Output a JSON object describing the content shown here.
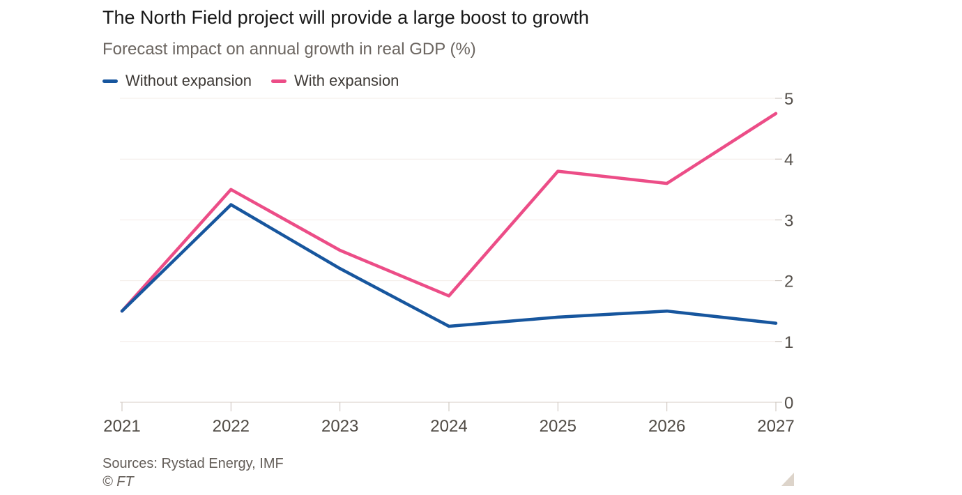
{
  "chart_data": {
    "type": "line",
    "title": "The North Field project will provide a large boost to growth",
    "subtitle": "Forecast impact on annual growth in real GDP (%)",
    "categories": [
      "2021",
      "2022",
      "2023",
      "2024",
      "2025",
      "2026",
      "2027"
    ],
    "series": [
      {
        "name": "Without expansion",
        "color": "#17569e",
        "values": [
          1.5,
          3.25,
          2.2,
          1.25,
          1.4,
          1.5,
          1.3
        ]
      },
      {
        "name": "With expansion",
        "color": "#ec4d87",
        "values": [
          1.5,
          3.5,
          2.5,
          1.75,
          3.8,
          3.6,
          4.75
        ]
      }
    ],
    "ylim": [
      0,
      5
    ],
    "yticks": [
      0,
      1,
      2,
      3,
      4,
      5
    ],
    "ylabel_side": "right",
    "grid": "horizontal",
    "legend_position": "top-left"
  },
  "footer": {
    "sources": "Sources: Rystad Energy, IMF",
    "copyright": "© FT"
  },
  "colors": {
    "background": "#ffffff",
    "grid": "#f3ece7",
    "axis": "#d7cec5",
    "tick": "#c9c0b8",
    "x_label": "#514c46",
    "y_label": "#55504b",
    "resize_handle": "#ddd4ca"
  }
}
